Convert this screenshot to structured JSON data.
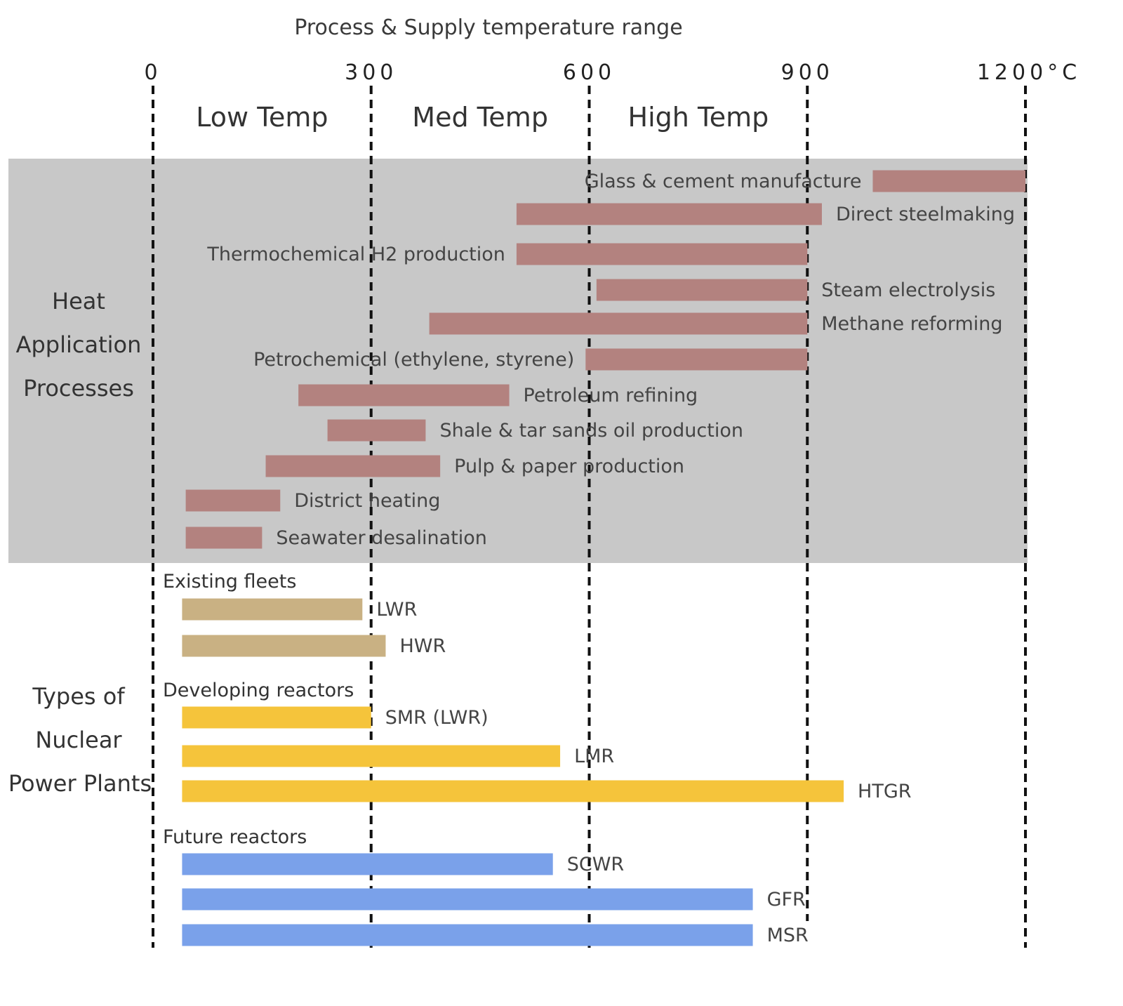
{
  "chart_data": {
    "type": "bar",
    "orientation": "horizontal-range",
    "title": "Process & Supply temperature range",
    "x_unit_label": "°C",
    "xlim": [
      0,
      1200
    ],
    "ticks": [
      {
        "value": 0,
        "label": "0"
      },
      {
        "value": 300,
        "label": "300"
      },
      {
        "value": 600,
        "label": "600"
      },
      {
        "value": 900,
        "label": "900"
      },
      {
        "value": 1200,
        "label": "1200°C"
      }
    ],
    "bands": [
      {
        "label": "Low Temp",
        "range": [
          0,
          300
        ]
      },
      {
        "label": "Med Temp",
        "range": [
          300,
          600
        ]
      },
      {
        "label": "High Temp",
        "range": [
          600,
          900
        ]
      }
    ],
    "sections": [
      {
        "name_lines": [
          "Heat",
          "Application",
          "Processes"
        ],
        "shaded": true,
        "color": "#b3827f",
        "groups": [
          {
            "label": "",
            "bars": [
              {
                "label": "Glass & cement manufacture",
                "start": 990,
                "end": 1200,
                "label_side": "left"
              },
              {
                "label": "Direct steelmaking",
                "start": 500,
                "end": 920,
                "label_side": "right"
              },
              {
                "label": "Thermochemical H2 production",
                "start": 500,
                "end": 900,
                "label_side": "left"
              },
              {
                "label": "Steam electrolysis",
                "start": 610,
                "end": 900,
                "label_side": "right"
              },
              {
                "label": "Methane reforming",
                "start": 380,
                "end": 900,
                "label_side": "right"
              },
              {
                "label": "Petrochemical (ethylene, styrene)",
                "start": 595,
                "end": 900,
                "label_side": "left"
              },
              {
                "label": "Petroleum refining",
                "start": 200,
                "end": 490,
                "label_side": "right"
              },
              {
                "label": "Shale & tar sands oil production",
                "start": 240,
                "end": 375,
                "label_side": "right"
              },
              {
                "label": "Pulp & paper production",
                "start": 155,
                "end": 395,
                "label_side": "right"
              },
              {
                "label": "District heating",
                "start": 45,
                "end": 175,
                "label_side": "right"
              },
              {
                "label": "Seawater desalination",
                "start": 45,
                "end": 150,
                "label_side": "right"
              }
            ]
          }
        ]
      },
      {
        "name_lines": [
          "Types of",
          "Nuclear",
          "Power Plants"
        ],
        "shaded": false,
        "groups": [
          {
            "label": "Existing fleets",
            "color": "#c9b183",
            "bars": [
              {
                "label": "LWR",
                "start": 40,
                "end": 288,
                "label_side": "right"
              },
              {
                "label": "HWR",
                "start": 40,
                "end": 320,
                "label_side": "right"
              }
            ]
          },
          {
            "label": "Developing reactors",
            "color": "#f5c43b",
            "bars": [
              {
                "label": "SMR (LWR)",
                "start": 40,
                "end": 300,
                "label_side": "right"
              },
              {
                "label": "LMR",
                "start": 40,
                "end": 560,
                "label_side": "right"
              },
              {
                "label": "HTGR",
                "start": 40,
                "end": 950,
                "label_side": "right"
              }
            ]
          },
          {
            "label": "Future reactors",
            "color": "#7aa1ea",
            "bars": [
              {
                "label": "SCWR",
                "start": 40,
                "end": 550,
                "label_side": "right"
              },
              {
                "label": "GFR",
                "start": 40,
                "end": 825,
                "label_side": "right"
              },
              {
                "label": "MSR",
                "start": 40,
                "end": 825,
                "label_side": "right"
              }
            ]
          }
        ]
      }
    ],
    "colors": {
      "shade": "#c8c8c8",
      "gridline": "#111111"
    }
  }
}
